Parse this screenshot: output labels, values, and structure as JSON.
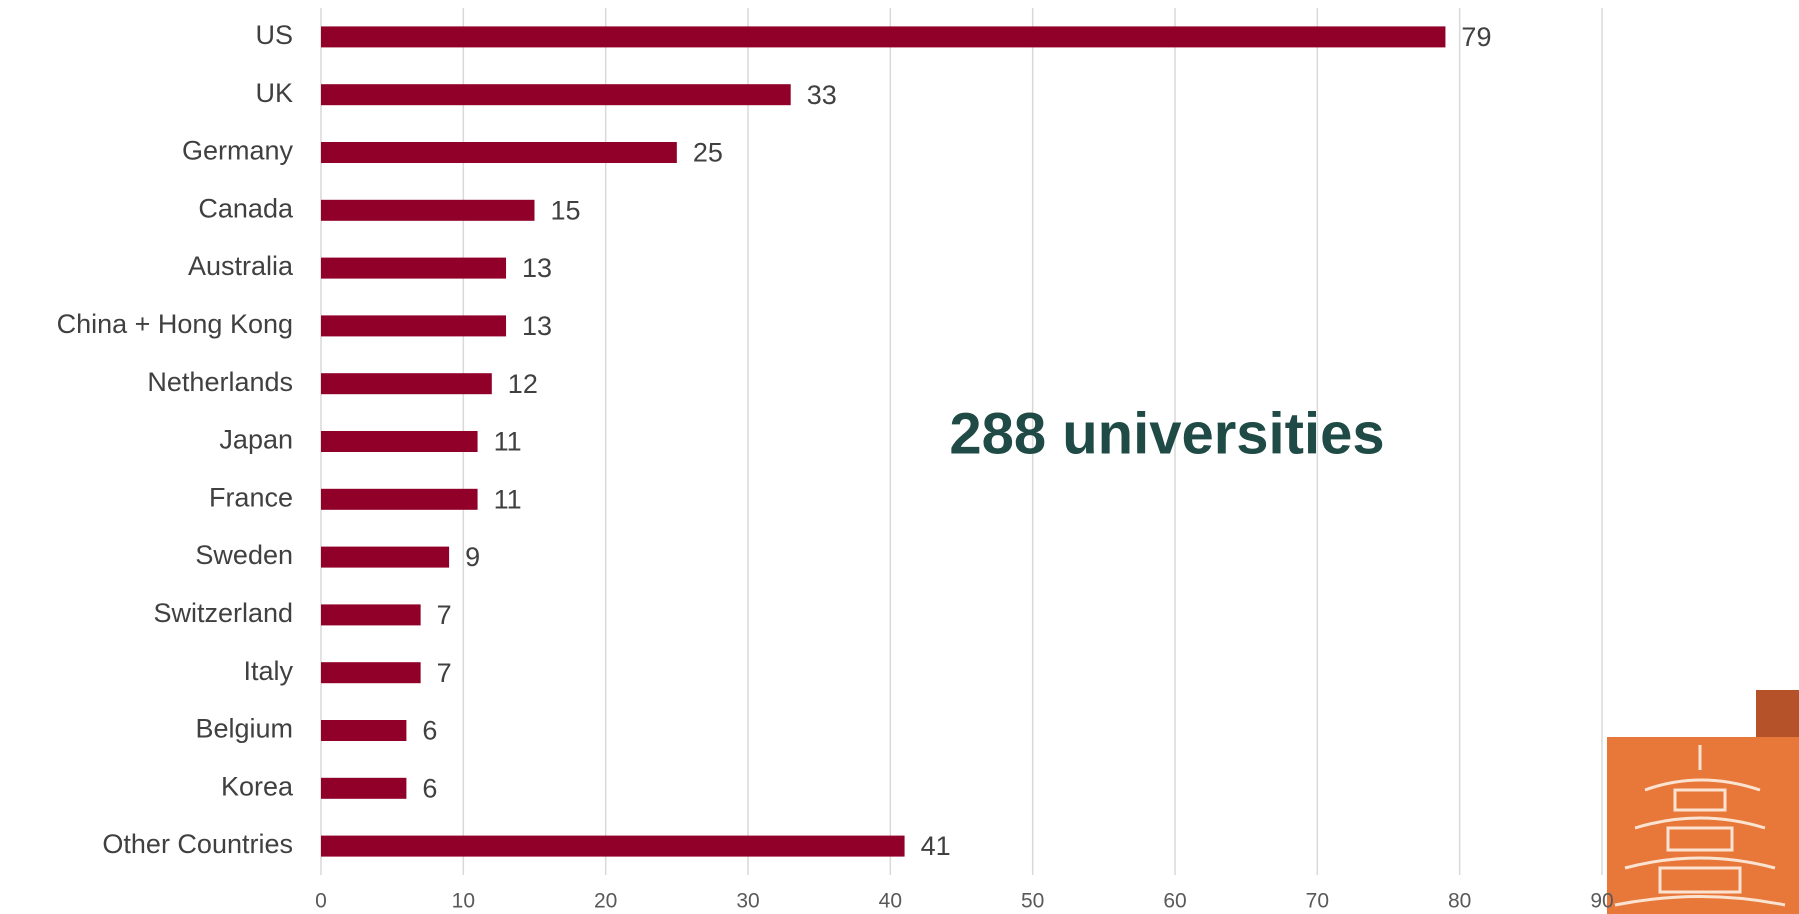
{
  "chart_data": {
    "type": "bar",
    "orientation": "horizontal",
    "categories": [
      "US",
      "UK",
      "Germany",
      "Canada",
      "Australia",
      "China + Hong Kong",
      "Netherlands",
      "Japan",
      "France",
      "Sweden",
      "Switzerland",
      "Italy",
      "Belgium",
      "Korea",
      "Other Countries"
    ],
    "values": [
      79,
      33,
      25,
      15,
      13,
      13,
      12,
      11,
      11,
      9,
      7,
      7,
      6,
      6,
      41
    ],
    "color": "#910028",
    "xlim": [
      0,
      90
    ],
    "xticks": [
      0,
      10,
      20,
      30,
      40,
      50,
      60,
      70,
      80,
      90
    ],
    "grid": true,
    "annotation": "288 universities"
  }
}
